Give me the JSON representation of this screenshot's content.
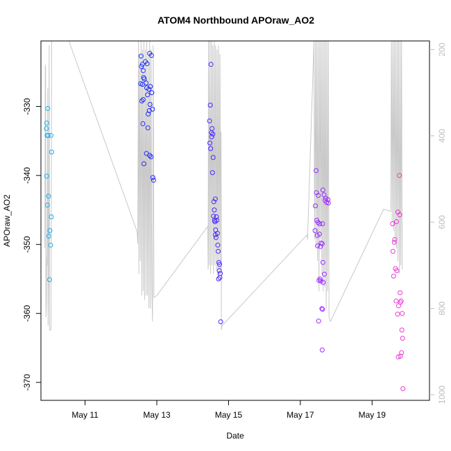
{
  "chart_data": {
    "type": "scatter",
    "title": "ATOM4 Northbound APOraw_AO2",
    "xlabel": "Date",
    "ylabel": "APOraw_AO2",
    "x_ticks": [
      "May 11",
      "May 13",
      "May 15",
      "May 17",
      "May 19"
    ],
    "x_tick_days": [
      11,
      13,
      15,
      17,
      19
    ],
    "xlim": [
      9.77,
      20.6
    ],
    "y_ticks": [
      -330,
      -340,
      -350,
      -360,
      -370
    ],
    "ylim": [
      -372.6,
      -320.5
    ],
    "y2_ticks": [
      200,
      400,
      600,
      800,
      1000
    ],
    "y2lim": [
      1013,
      180
    ],
    "colors": {
      "points_start": "#1fb1e8",
      "points_mid": "#2020ff",
      "points_late": "#9a2aff",
      "points_end": "#f03ad0",
      "secondary_line": "#c8c8c8",
      "secondary_axis": "#bdbdbd"
    },
    "points": [
      [
        9.93,
        -332.4
      ],
      [
        9.92,
        -333.2
      ],
      [
        9.96,
        -330.3
      ],
      [
        9.94,
        -334.2
      ],
      [
        9.97,
        -334.2
      ],
      [
        10.05,
        -334.2
      ],
      [
        10.07,
        -336.6
      ],
      [
        9.93,
        -340.1
      ],
      [
        9.98,
        -343.0
      ],
      [
        9.95,
        -344.3
      ],
      [
        10.06,
        -346.0
      ],
      [
        10.02,
        -348.0
      ],
      [
        9.99,
        -348.8
      ],
      [
        10.04,
        -350.1
      ],
      [
        10.01,
        -355.1
      ],
      [
        12.56,
        -322.7
      ],
      [
        12.68,
        -323.5
      ],
      [
        12.8,
        -322.3
      ],
      [
        12.85,
        -322.6
      ],
      [
        12.6,
        -323.9
      ],
      [
        12.57,
        -324.2
      ],
      [
        12.73,
        -323.8
      ],
      [
        12.62,
        -324.8
      ],
      [
        12.63,
        -325.8
      ],
      [
        12.65,
        -326.0
      ],
      [
        12.55,
        -326.7
      ],
      [
        12.6,
        -326.8
      ],
      [
        12.7,
        -326.6
      ],
      [
        12.72,
        -327.3
      ],
      [
        12.82,
        -327.1
      ],
      [
        12.78,
        -327.5
      ],
      [
        12.86,
        -328.0
      ],
      [
        12.74,
        -328.3
      ],
      [
        12.58,
        -329.2
      ],
      [
        12.62,
        -329.0
      ],
      [
        12.81,
        -329.7
      ],
      [
        12.88,
        -330.4
      ],
      [
        12.79,
        -330.6
      ],
      [
        12.76,
        -331.1
      ],
      [
        12.61,
        -332.5
      ],
      [
        12.75,
        -333.1
      ],
      [
        12.71,
        -336.8
      ],
      [
        12.8,
        -337.1
      ],
      [
        12.84,
        -337.3
      ],
      [
        12.64,
        -338.3
      ],
      [
        12.89,
        -340.3
      ],
      [
        12.91,
        -340.7
      ],
      [
        14.51,
        -323.9
      ],
      [
        14.49,
        -329.8
      ],
      [
        14.47,
        -332.1
      ],
      [
        14.54,
        -333.2
      ],
      [
        14.52,
        -333.8
      ],
      [
        14.56,
        -334.0
      ],
      [
        14.53,
        -334.4
      ],
      [
        14.48,
        -335.3
      ],
      [
        14.5,
        -336.1
      ],
      [
        14.57,
        -337.4
      ],
      [
        14.55,
        -339.6
      ],
      [
        14.63,
        -343.4
      ],
      [
        14.59,
        -343.8
      ],
      [
        14.6,
        -345.0
      ],
      [
        14.58,
        -345.9
      ],
      [
        14.66,
        -346.0
      ],
      [
        14.61,
        -346.5
      ],
      [
        14.62,
        -346.7
      ],
      [
        14.67,
        -346.5
      ],
      [
        14.64,
        -347.9
      ],
      [
        14.69,
        -348.4
      ],
      [
        14.63,
        -348.6
      ],
      [
        14.65,
        -349.0
      ],
      [
        14.7,
        -350.1
      ],
      [
        14.71,
        -351.0
      ],
      [
        14.73,
        -352.6
      ],
      [
        14.75,
        -352.9
      ],
      [
        14.74,
        -353.8
      ],
      [
        14.77,
        -354.2
      ],
      [
        14.76,
        -354.8
      ],
      [
        14.72,
        -355.0
      ],
      [
        14.78,
        -361.2
      ],
      [
        17.44,
        -339.3
      ],
      [
        17.45,
        -342.5
      ],
      [
        17.5,
        -342.9
      ],
      [
        17.42,
        -344.4
      ],
      [
        17.63,
        -342.1
      ],
      [
        17.66,
        -342.8
      ],
      [
        17.71,
        -343.3
      ],
      [
        17.69,
        -343.6
      ],
      [
        17.73,
        -343.9
      ],
      [
        17.78,
        -344.0
      ],
      [
        17.77,
        -343.5
      ],
      [
        17.46,
        -346.5
      ],
      [
        17.49,
        -346.8
      ],
      [
        17.54,
        -347.0
      ],
      [
        17.62,
        -347.0
      ],
      [
        17.41,
        -348.0
      ],
      [
        17.53,
        -348.5
      ],
      [
        17.47,
        -348.7
      ],
      [
        17.58,
        -349.8
      ],
      [
        17.61,
        -349.9
      ],
      [
        17.56,
        -350.3
      ],
      [
        17.48,
        -350.2
      ],
      [
        17.63,
        -352.6
      ],
      [
        17.67,
        -354.3
      ],
      [
        17.55,
        -355.0
      ],
      [
        17.52,
        -355.2
      ],
      [
        17.57,
        -355.3
      ],
      [
        17.64,
        -355.5
      ],
      [
        17.6,
        -359.3
      ],
      [
        17.62,
        -359.4
      ],
      [
        17.51,
        -361.1
      ],
      [
        17.61,
        -365.3
      ],
      [
        19.76,
        -340.0
      ],
      [
        19.72,
        -345.3
      ],
      [
        19.77,
        -345.7
      ],
      [
        19.68,
        -346.7
      ],
      [
        19.57,
        -347.0
      ],
      [
        19.63,
        -349.3
      ],
      [
        19.62,
        -349.7
      ],
      [
        19.58,
        -351.0
      ],
      [
        19.65,
        -353.5
      ],
      [
        19.69,
        -353.8
      ],
      [
        19.6,
        -354.6
      ],
      [
        19.67,
        -358.2
      ],
      [
        19.81,
        -358.2
      ],
      [
        19.74,
        -358.9
      ],
      [
        19.79,
        -358.4
      ],
      [
        19.71,
        -360.1
      ],
      [
        19.78,
        -357.0
      ],
      [
        19.84,
        -360.0
      ],
      [
        19.83,
        -362.4
      ],
      [
        19.85,
        -363.6
      ],
      [
        19.82,
        -365.7
      ],
      [
        19.73,
        -366.3
      ],
      [
        19.79,
        -366.2
      ],
      [
        19.86,
        -370.9
      ]
    ],
    "secondary_line": [
      [
        9.88,
        660
      ],
      [
        9.89,
        235
      ],
      [
        9.9,
        245
      ],
      [
        9.91,
        820
      ],
      [
        9.92,
        790
      ],
      [
        9.93,
        680
      ],
      [
        9.94,
        700
      ],
      [
        9.96,
        290
      ],
      [
        9.97,
        840
      ],
      [
        9.98,
        750
      ],
      [
        10.0,
        190
      ],
      [
        10.01,
        850
      ],
      [
        10.05,
        850
      ],
      [
        10.07,
        180
      ],
      [
        10.55,
        180
      ],
      [
        12.45,
        622
      ],
      [
        12.47,
        650
      ],
      [
        12.49,
        180
      ],
      [
        12.5,
        720
      ],
      [
        12.52,
        210
      ],
      [
        12.54,
        690
      ],
      [
        12.56,
        180
      ],
      [
        12.58,
        770
      ],
      [
        12.6,
        200
      ],
      [
        12.62,
        760
      ],
      [
        12.64,
        180
      ],
      [
        12.66,
        780
      ],
      [
        12.68,
        200
      ],
      [
        12.7,
        770
      ],
      [
        12.72,
        180
      ],
      [
        12.74,
        770
      ],
      [
        12.76,
        210
      ],
      [
        12.78,
        800
      ],
      [
        12.8,
        180
      ],
      [
        12.82,
        800
      ],
      [
        12.84,
        200
      ],
      [
        12.86,
        750
      ],
      [
        12.88,
        830
      ],
      [
        12.9,
        190
      ],
      [
        12.92,
        775
      ],
      [
        13.0,
        770
      ],
      [
        14.42,
        610
      ],
      [
        14.43,
        710
      ],
      [
        14.44,
        180
      ],
      [
        14.46,
        700
      ],
      [
        14.48,
        180
      ],
      [
        14.5,
        720
      ],
      [
        14.52,
        180
      ],
      [
        14.54,
        700
      ],
      [
        14.56,
        190
      ],
      [
        14.58,
        720
      ],
      [
        14.6,
        180
      ],
      [
        14.62,
        700
      ],
      [
        14.64,
        190
      ],
      [
        14.66,
        710
      ],
      [
        14.68,
        200
      ],
      [
        14.7,
        730
      ],
      [
        14.72,
        190
      ],
      [
        14.74,
        720
      ],
      [
        14.76,
        210
      ],
      [
        14.78,
        710
      ],
      [
        14.79,
        390
      ],
      [
        14.8,
        850
      ],
      [
        14.82,
        840
      ],
      [
        17.18,
        630
      ],
      [
        17.2,
        640
      ],
      [
        17.38,
        180
      ],
      [
        17.4,
        640
      ],
      [
        17.42,
        180
      ],
      [
        17.44,
        660
      ],
      [
        17.46,
        180
      ],
      [
        17.48,
        690
      ],
      [
        17.5,
        180
      ],
      [
        17.52,
        760
      ],
      [
        17.54,
        180
      ],
      [
        17.56,
        640
      ],
      [
        17.58,
        180
      ],
      [
        17.6,
        720
      ],
      [
        17.62,
        180
      ],
      [
        17.64,
        760
      ],
      [
        17.66,
        180
      ],
      [
        17.68,
        750
      ],
      [
        17.7,
        180
      ],
      [
        17.72,
        800
      ],
      [
        17.74,
        180
      ],
      [
        17.76,
        760
      ],
      [
        17.78,
        180
      ],
      [
        17.8,
        820
      ],
      [
        17.84,
        830
      ],
      [
        19.32,
        570
      ],
      [
        19.52,
        575
      ],
      [
        19.54,
        180
      ],
      [
        19.56,
        600
      ],
      [
        19.58,
        180
      ],
      [
        19.6,
        620
      ],
      [
        19.62,
        180
      ],
      [
        19.64,
        650
      ],
      [
        19.66,
        180
      ],
      [
        19.68,
        660
      ],
      [
        19.7,
        180
      ],
      [
        19.72,
        690
      ],
      [
        19.74,
        180
      ],
      [
        19.76,
        720
      ],
      [
        19.78,
        180
      ],
      [
        19.8,
        700
      ],
      [
        19.82,
        180
      ],
      [
        19.84,
        710
      ]
    ]
  }
}
